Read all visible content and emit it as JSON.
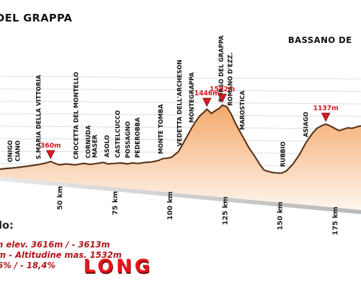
{
  "header": {
    "title_left": "DEL GRAPPA",
    "title_right": "BASSANO DE"
  },
  "info": {
    "section_label": "lo:",
    "line1": "n elev.  3616m / - 3613m",
    "line2": "m  -  Altitudine mas. 1532m",
    "line3": "6% / - 18,4%",
    "brand": "LONG"
  },
  "colors": {
    "profile_top": "#f3a86b",
    "profile_bottom": "#fff6ee",
    "ridge": "#5a3418",
    "marker": "#d71920",
    "label_text": "#111111",
    "alt_text": "#d71920"
  },
  "chart_data": {
    "type": "area",
    "title": "",
    "xlabel": "",
    "ylabel": "",
    "xlim": [
      23,
      187
    ],
    "ylim": [
      0,
      1700
    ],
    "x_ticks": [
      50,
      75,
      100,
      125,
      150,
      175
    ],
    "x_tick_labels": [
      "50 km",
      "75 km",
      "100 km",
      "125 km",
      "150 km",
      "175 km"
    ],
    "profile": [
      [
        23,
        200
      ],
      [
        25,
        210
      ],
      [
        30,
        230
      ],
      [
        35,
        260
      ],
      [
        38,
        280
      ],
      [
        41,
        300
      ],
      [
        44,
        330
      ],
      [
        46,
        360
      ],
      [
        48,
        320
      ],
      [
        50,
        290
      ],
      [
        53,
        310
      ],
      [
        57,
        290
      ],
      [
        61,
        320
      ],
      [
        64,
        300
      ],
      [
        67,
        320
      ],
      [
        70,
        340
      ],
      [
        72,
        310
      ],
      [
        75,
        320
      ],
      [
        78,
        330
      ],
      [
        81,
        310
      ],
      [
        83,
        330
      ],
      [
        86,
        320
      ],
      [
        89,
        340
      ],
      [
        92,
        350
      ],
      [
        95,
        380
      ],
      [
        97,
        420
      ],
      [
        99,
        430
      ],
      [
        101,
        450
      ],
      [
        104,
        560
      ],
      [
        107,
        800
      ],
      [
        110,
        1050
      ],
      [
        112,
        1200
      ],
      [
        114,
        1320
      ],
      [
        116,
        1400
      ],
      [
        117,
        1446
      ],
      [
        119,
        1360
      ],
      [
        121,
        1420
      ],
      [
        123,
        1480
      ],
      [
        124,
        1532
      ],
      [
        126,
        1500
      ],
      [
        128,
        1350
      ],
      [
        130,
        1150
      ],
      [
        133,
        900
      ],
      [
        136,
        650
      ],
      [
        139,
        450
      ],
      [
        141,
        300
      ],
      [
        143,
        180
      ],
      [
        145,
        150
      ],
      [
        147,
        130
      ],
      [
        149,
        120
      ],
      [
        151,
        120
      ],
      [
        153,
        160
      ],
      [
        156,
        300
      ],
      [
        159,
        500
      ],
      [
        162,
        750
      ],
      [
        165,
        950
      ],
      [
        167,
        1050
      ],
      [
        169,
        1100
      ],
      [
        171,
        1137
      ],
      [
        173,
        1100
      ],
      [
        175,
        1050
      ],
      [
        177,
        1000
      ],
      [
        179,
        1030
      ],
      [
        181,
        1060
      ],
      [
        183,
        1050
      ],
      [
        185,
        1080
      ],
      [
        187,
        1100
      ]
    ],
    "annotations": [
      {
        "label": "ONIGO",
        "x": 27.5,
        "y": 230
      },
      {
        "label": "CIANO",
        "x": 31,
        "y": 245
      },
      {
        "label": "S.MARIA DELLA VITTORIA",
        "x": 40.5,
        "y": 290
      },
      {
        "label": "CROCETTA DEL MONTELLO",
        "x": 57.5,
        "y": 290
      },
      {
        "label": "CORNUDA",
        "x": 63,
        "y": 310
      },
      {
        "label": "MASER",
        "x": 66,
        "y": 320
      },
      {
        "label": "ASOLO",
        "x": 71.5,
        "y": 330
      },
      {
        "label": "CASTELCUCCO",
        "x": 76.5,
        "y": 320
      },
      {
        "label": "POSSAGNO",
        "x": 81,
        "y": 315
      },
      {
        "label": "PEDEROBBA",
        "x": 85.5,
        "y": 320
      },
      {
        "label": "MONTE TOMBA",
        "x": 96,
        "y": 400
      },
      {
        "label": "VEDETTA DELL'ARCHESON",
        "x": 104.5,
        "y": 560
      },
      {
        "label": "MONTEGRAPPA",
        "x": 110,
        "y": 1050
      },
      {
        "label": "BORSO DEL GRAPPA",
        "x": 123.5,
        "y": 1480
      },
      {
        "label": "ROMANO D'EZZ.",
        "x": 127.5,
        "y": 1400
      },
      {
        "label": "MAROSTICA",
        "x": 133,
        "y": 900
      },
      {
        "label": "RUBBIO",
        "x": 151.5,
        "y": 130
      },
      {
        "label": "ASIAGO",
        "x": 162,
        "y": 750
      }
    ],
    "summits": [
      {
        "label": "360m",
        "x": 46,
        "y": 360
      },
      {
        "label": "1446m",
        "x": 117,
        "y": 1446
      },
      {
        "label": "1532m",
        "x": 124,
        "y": 1532
      },
      {
        "label": "1137m",
        "x": 171,
        "y": 1137
      }
    ],
    "grid": true,
    "legend": "none"
  }
}
